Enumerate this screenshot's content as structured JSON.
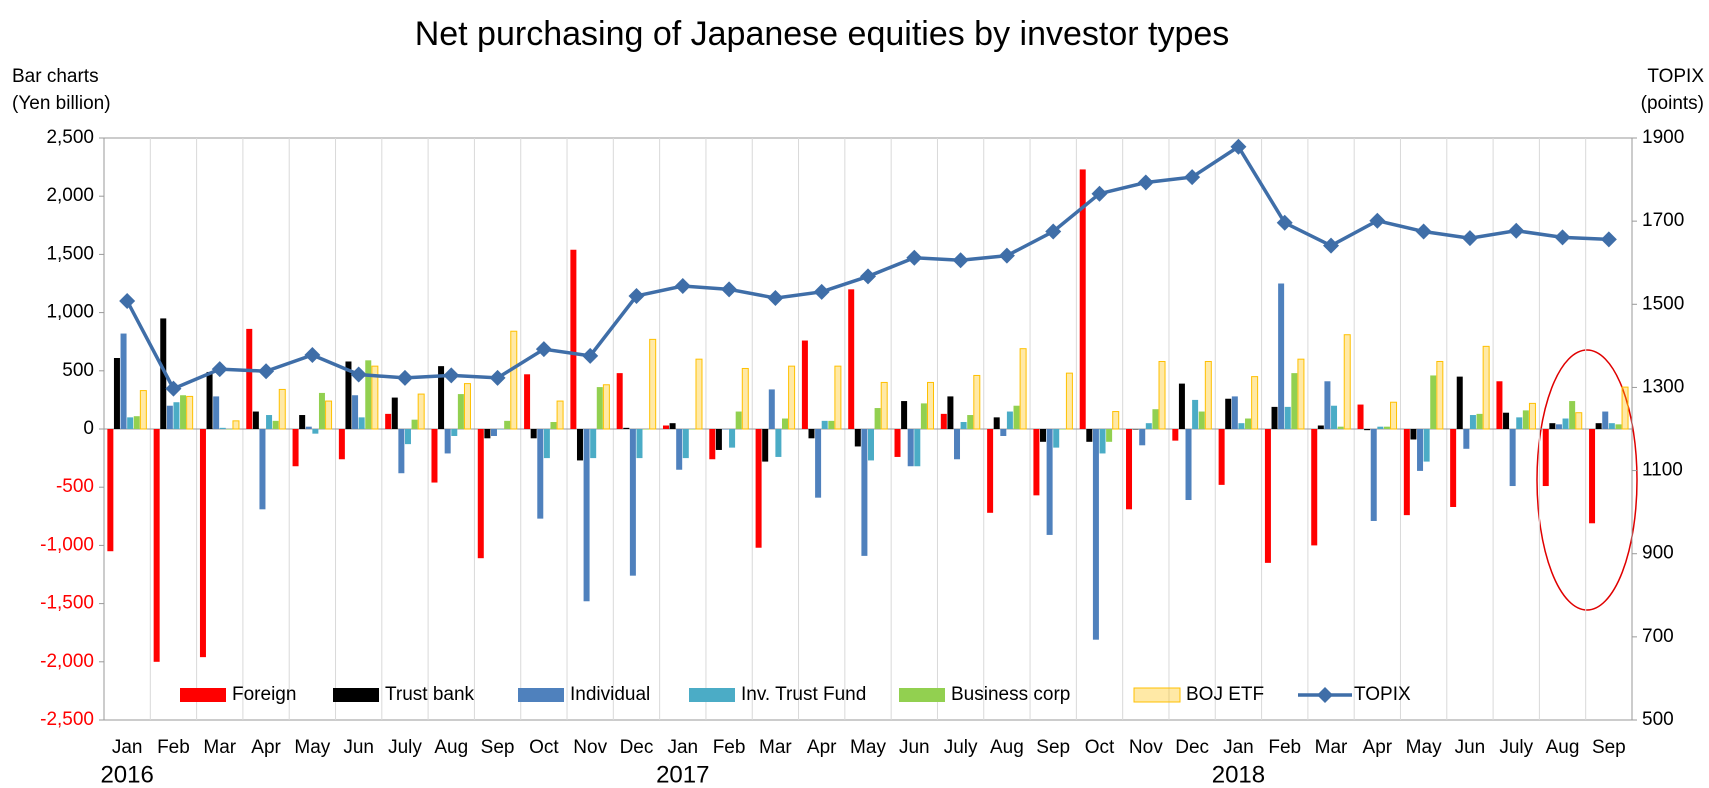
{
  "chart_data": {
    "type": "bar-line",
    "title": "Net purchasing of Japanese equities by investor types",
    "y_label": [
      "Bar charts",
      "(Yen billion)"
    ],
    "y2_label": [
      "TOPIX",
      "(points)"
    ],
    "categories": [
      "Jan",
      "Feb",
      "Mar",
      "Apr",
      "May",
      "Jun",
      "July",
      "Aug",
      "Sep",
      "Oct",
      "Nov",
      "Dec",
      "Jan",
      "Feb",
      "Mar",
      "Apr",
      "May",
      "Jun",
      "July",
      "Aug",
      "Sep",
      "Oct",
      "Nov",
      "Dec",
      "Jan",
      "Feb",
      "Mar",
      "Apr",
      "May",
      "Jun",
      "July",
      "Aug",
      "Sep"
    ],
    "year_labels": [
      "2016",
      "2017",
      "2018"
    ],
    "ylim": [
      -2500,
      2500
    ],
    "yticks": [
      {
        "value": 2500,
        "label": "2,500"
      },
      {
        "value": 2000,
        "label": "2,000"
      },
      {
        "value": 1500,
        "label": "1,500"
      },
      {
        "value": 1000,
        "label": "1,000"
      },
      500,
      0,
      -500,
      {
        "value": -1000,
        "label": "-1,000"
      },
      {
        "value": -1500,
        "label": "-1,500"
      },
      {
        "value": -2000,
        "label": "-2,000"
      },
      {
        "value": -2500,
        "label": "-2,500"
      }
    ],
    "y2lim": [
      500,
      1900
    ],
    "y2ticks": [
      1900,
      1700,
      1500,
      1300,
      1100,
      900,
      700,
      500
    ],
    "grid": false,
    "legend": "bottom",
    "series": [
      {
        "name": "Foreign",
        "type": "bar",
        "color": "#ff0000",
        "values": [
          -1050,
          -2000,
          -1960,
          860,
          -320,
          -260,
          130,
          -460,
          -1110,
          470,
          1540,
          480,
          30,
          -260,
          -1020,
          760,
          1200,
          -240,
          130,
          -720,
          -570,
          2230,
          -690,
          -100,
          -480,
          -1150,
          -1000,
          210,
          -740,
          -670,
          410,
          -490,
          -810
        ]
      },
      {
        "name": "Trust bank",
        "type": "bar",
        "color": "#000000",
        "values": [
          610,
          950,
          490,
          150,
          120,
          580,
          270,
          540,
          -80,
          -80,
          -270,
          10,
          50,
          -180,
          -280,
          -80,
          -150,
          240,
          280,
          100,
          -110,
          -110,
          0,
          390,
          260,
          190,
          30,
          -10,
          -90,
          450,
          140,
          50,
          50
        ]
      },
      {
        "name": "Individual",
        "type": "bar",
        "color": "#4f81bd",
        "values": [
          820,
          200,
          280,
          -690,
          20,
          290,
          -380,
          -210,
          -60,
          -770,
          -1480,
          -1260,
          -350,
          0,
          340,
          -590,
          -1090,
          -320,
          -260,
          -60,
          -910,
          -1810,
          -140,
          -610,
          280,
          1250,
          410,
          -790,
          -360,
          -170,
          -490,
          40,
          150
        ]
      },
      {
        "name": "Inv. Trust Fund",
        "type": "bar",
        "color": "#4bacc6",
        "values": [
          100,
          230,
          10,
          120,
          -40,
          100,
          -130,
          -60,
          0,
          -250,
          -250,
          -250,
          -250,
          -160,
          -240,
          70,
          -270,
          -320,
          60,
          150,
          -160,
          -210,
          50,
          250,
          50,
          190,
          200,
          20,
          -280,
          120,
          100,
          90,
          50
        ]
      },
      {
        "name": "Business corp",
        "type": "bar",
        "color": "#92d050",
        "values": [
          110,
          290,
          0,
          70,
          310,
          590,
          80,
          300,
          70,
          60,
          360,
          0,
          0,
          150,
          90,
          70,
          180,
          220,
          120,
          200,
          0,
          -110,
          170,
          150,
          90,
          480,
          20,
          20,
          460,
          130,
          160,
          240,
          40
        ]
      },
      {
        "name": "BOJ ETF",
        "type": "bar",
        "color": "#ffc000",
        "values": [
          330,
          280,
          70,
          340,
          240,
          540,
          300,
          390,
          840,
          240,
          380,
          770,
          600,
          520,
          540,
          540,
          400,
          400,
          460,
          690,
          480,
          150,
          580,
          580,
          450,
          600,
          810,
          230,
          580,
          710,
          220,
          140,
          360
        ]
      },
      {
        "name": "TOPIX",
        "type": "line",
        "axis": "y2",
        "color": "#3f6ea8",
        "values": [
          1508,
          1297,
          1344,
          1339,
          1378,
          1331,
          1323,
          1329,
          1323,
          1392,
          1376,
          1520,
          1544,
          1536,
          1515,
          1530,
          1567,
          1612,
          1606,
          1617,
          1675,
          1766,
          1793,
          1806,
          1879,
          1696,
          1641,
          1701,
          1675,
          1659,
          1677,
          1661,
          1656
        ]
      }
    ]
  }
}
